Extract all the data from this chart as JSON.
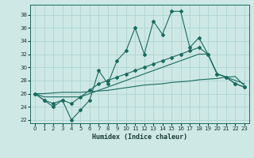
{
  "title": "",
  "xlabel": "Humidex (Indice chaleur)",
  "background_color": "#cde8e5",
  "grid_color": "#aed4d0",
  "line_color": "#1a6b60",
  "xlim": [
    -0.5,
    23.5
  ],
  "ylim": [
    21.5,
    39.5
  ],
  "yticks": [
    22,
    24,
    26,
    28,
    30,
    32,
    34,
    36,
    38
  ],
  "xticks": [
    0,
    1,
    2,
    3,
    4,
    5,
    6,
    7,
    8,
    9,
    10,
    11,
    12,
    13,
    14,
    15,
    16,
    17,
    18,
    19,
    20,
    21,
    22,
    23
  ],
  "x": [
    0,
    1,
    2,
    3,
    4,
    5,
    6,
    7,
    8,
    9,
    10,
    11,
    12,
    13,
    14,
    15,
    16,
    17,
    18,
    19,
    20,
    21,
    22,
    23
  ],
  "y_main": [
    26,
    25,
    24,
    25,
    22,
    23.5,
    25,
    29.5,
    27.5,
    31,
    32.5,
    36,
    32,
    37,
    35,
    38.5,
    38.5,
    33,
    34.5,
    32,
    29,
    28.5,
    27.5,
    27
  ],
  "y_line1": [
    26,
    25,
    24.5,
    25,
    24.5,
    25.5,
    26.5,
    27.5,
    28,
    28.5,
    29,
    29.5,
    30,
    30.5,
    31,
    31.5,
    32,
    32.5,
    33,
    32,
    29,
    28.5,
    27.5,
    27
  ],
  "y_line2": [
    26,
    25.5,
    25.5,
    25.5,
    25.5,
    25.5,
    26,
    26.5,
    27,
    27.5,
    28,
    28.5,
    29,
    29.5,
    30,
    30.5,
    31,
    31.5,
    32,
    32,
    29,
    28.5,
    28,
    27.5
  ],
  "y_line3": [
    26,
    26,
    26.1,
    26.2,
    26.2,
    26.2,
    26.3,
    26.4,
    26.5,
    26.7,
    26.9,
    27.1,
    27.3,
    27.4,
    27.5,
    27.7,
    27.8,
    27.9,
    28.1,
    28.2,
    28.3,
    28.5,
    28.6,
    27.2
  ]
}
